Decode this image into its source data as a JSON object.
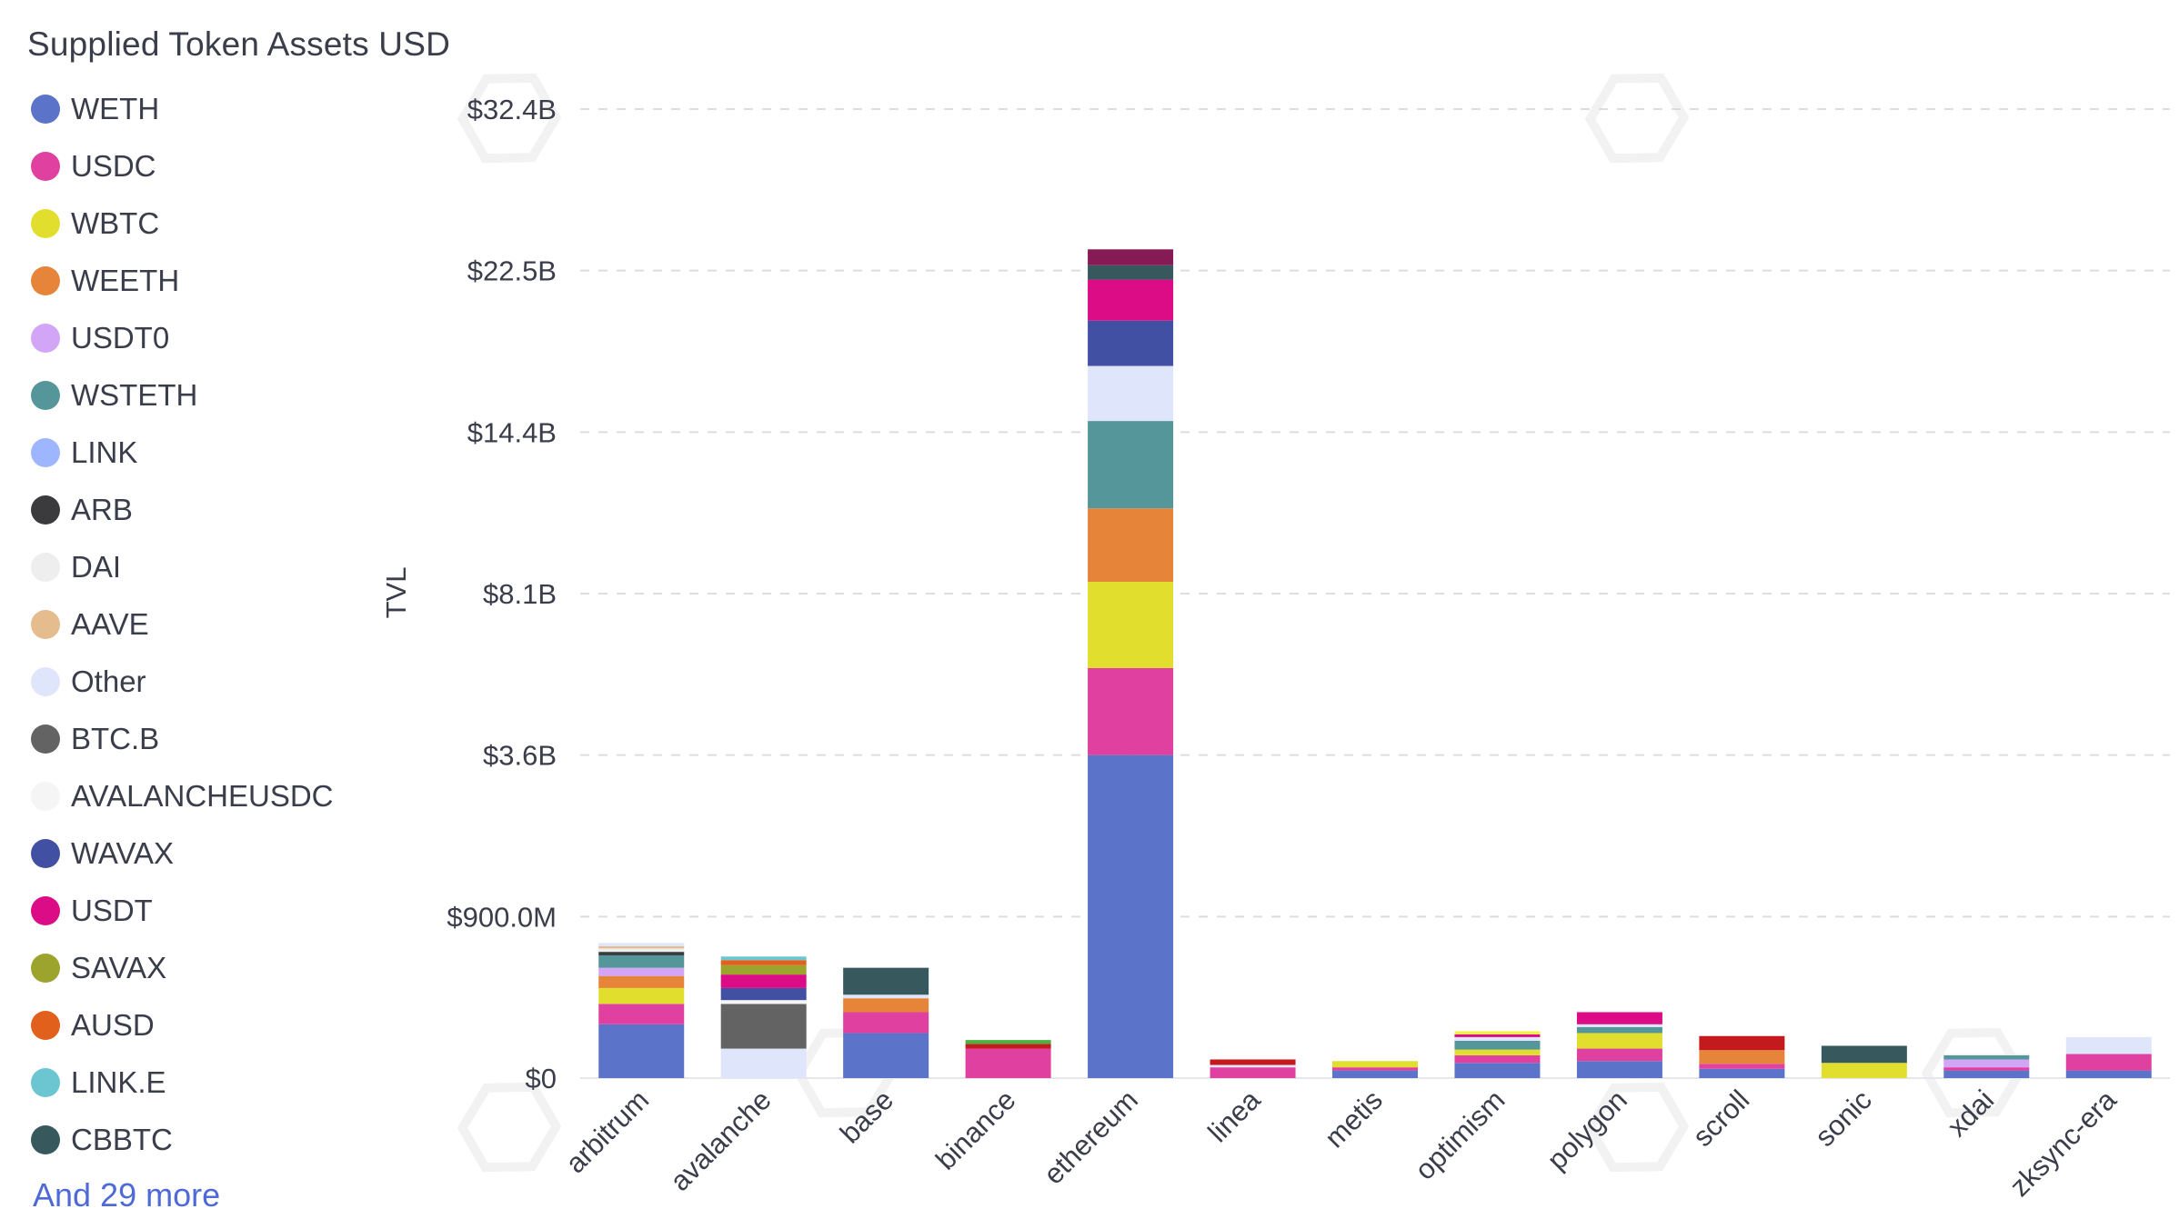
{
  "chart_data": {
    "type": "bar",
    "stacked": true,
    "title": "Supplied Token Assets USD",
    "ylabel": "TVL",
    "xlabel": "",
    "ytick_labels": [
      "$0",
      "$900.0M",
      "$3.6B",
      "$8.1B",
      "$14.4B",
      "$22.5B",
      "$32.4B"
    ],
    "ytick_values": [
      0,
      0.9,
      3.6,
      8.1,
      14.4,
      22.5,
      32.4
    ],
    "y_scale": "sqrt",
    "ylim": [
      0,
      32.4
    ],
    "y_unit": "B USD",
    "grid": "horizontal-dashed",
    "legend_placement": "left",
    "categories": [
      "arbitrum",
      "avalanche",
      "base",
      "binance",
      "ethereum",
      "linea",
      "metis",
      "optimism",
      "polygon",
      "scroll",
      "sonic",
      "xdai",
      "zksync-era"
    ],
    "series": [
      {
        "name": "WETH",
        "color": "#5b73c8",
        "values": [
          0.1,
          0.0,
          0.07,
          0.0,
          3.6,
          0.0,
          0.002,
          0.008,
          0.01,
          0.003,
          0.0,
          0.002,
          0.002
        ]
      },
      {
        "name": "USDC",
        "color": "#e040a0",
        "values": [
          0.09,
          0.0,
          0.08,
          0.03,
          2.2,
          0.004,
          0.002,
          0.01,
          0.02,
          0.004,
          0.0,
          0.002,
          0.018
        ]
      },
      {
        "name": "WBTC",
        "color": "#e2de2e",
        "values": [
          0.09,
          0.0,
          0.0,
          0.0,
          2.7,
          0.0,
          0.006,
          0.01,
          0.04,
          0.0,
          0.008,
          0.0,
          0.0
        ]
      },
      {
        "name": "WEETH",
        "color": "#e6853a",
        "values": [
          0.08,
          0.0,
          0.07,
          0.0,
          2.7,
          0.0,
          0.0,
          0.0,
          0.0,
          0.02,
          0.0,
          0.0,
          0.0
        ]
      },
      {
        "name": "USDT0",
        "color": "#d3a5f7",
        "values": [
          0.06,
          0.0,
          0.0,
          0.0,
          0.0,
          0.0,
          0.0,
          0.0,
          0.0,
          0.0,
          0.0,
          0.008,
          0.0
        ]
      },
      {
        "name": "WSTETH",
        "color": "#55969a",
        "values": [
          0.1,
          0.0,
          0.0,
          0.0,
          3.7,
          0.0,
          0.0,
          0.02,
          0.02,
          0.0,
          0.0,
          0.006,
          0.0
        ]
      },
      {
        "name": "LINK",
        "color": "#9db6ff",
        "values": [
          0.0,
          0.0,
          0.0,
          0.0,
          0.0,
          0.0,
          0.0,
          0.0,
          0.0,
          0.0,
          0.0,
          0.0,
          0.0
        ]
      },
      {
        "name": "ARB",
        "color": "#3b3b3d",
        "values": [
          0.03,
          0.0,
          0.0,
          0.0,
          0.0,
          0.0,
          0.0,
          0.0,
          0.0,
          0.0,
          0.0,
          0.0,
          0.0
        ]
      },
      {
        "name": "DAI",
        "color": "#eeeeee",
        "values": [
          0.03,
          0.0,
          0.0,
          0.0,
          0.0,
          0.0,
          0.0,
          0.0,
          0.0,
          0.0,
          0.0,
          0.002,
          0.0
        ]
      },
      {
        "name": "AAVE",
        "color": "#e4bc8e",
        "values": [
          0.02,
          0.0,
          0.0,
          0.0,
          0.0,
          0.0,
          0.0,
          0.0,
          0.0,
          0.0,
          0.0,
          0.0,
          0.0
        ]
      },
      {
        "name": "Other",
        "color": "#dfe6fb",
        "values": [
          0.03,
          0.03,
          0.02,
          0.0,
          2.6,
          0.002,
          0.0,
          0.01,
          0.01,
          0.0,
          0.0,
          0.0,
          0.038
        ]
      },
      {
        "name": "BTC.B",
        "color": "#636363",
        "values": [
          0.0,
          0.16,
          0.0,
          0.0,
          0.0,
          0.0,
          0.0,
          0.0,
          0.0,
          0.0,
          0.0,
          0.0,
          0.0
        ]
      },
      {
        "name": "AVALANCHEUSDC",
        "color": "#f5f5f5",
        "values": [
          0.0,
          0.02,
          0.0,
          0.0,
          0.0,
          0.0,
          0.0,
          0.0,
          0.0,
          0.0,
          0.0,
          0.0,
          0.0
        ]
      },
      {
        "name": "WAVAX",
        "color": "#4150a3",
        "values": [
          0.0,
          0.07,
          0.0,
          0.0,
          2.3,
          0.0,
          0.0,
          0.0,
          0.0,
          0.0,
          0.0,
          0.0,
          0.0
        ]
      },
      {
        "name": "USDT",
        "color": "#dc0c86",
        "values": [
          0.0,
          0.09,
          0.0,
          0.0,
          2.2,
          0.0,
          0.0,
          0.008,
          0.05,
          0.0,
          0.0,
          0.0,
          0.0
        ]
      },
      {
        "name": "SAVAX",
        "color": "#9ca42e",
        "values": [
          0.0,
          0.07,
          0.0,
          0.0,
          0.0,
          0.0,
          0.0,
          0.0,
          0.0,
          0.0,
          0.0,
          0.0,
          0.0
        ]
      },
      {
        "name": "AUSD",
        "color": "#e0601c",
        "values": [
          0.0,
          0.04,
          0.0,
          0.0,
          0.0,
          0.0,
          0.0,
          0.0,
          0.0,
          0.0,
          0.0,
          0.0,
          0.0
        ]
      },
      {
        "name": "LINK.E",
        "color": "#6cc6d2",
        "values": [
          0.0,
          0.03,
          0.0,
          0.0,
          0.0,
          0.0,
          0.0,
          0.0,
          0.0,
          0.0,
          0.0,
          0.0,
          0.0
        ]
      },
      {
        "name": "CBBTC",
        "color": "#37595e",
        "values": [
          0.0,
          0.0,
          0.18,
          0.0,
          0.8,
          0.0,
          0.0,
          0.0,
          0.0,
          0.0,
          0.028,
          0.0,
          0.0
        ]
      },
      {
        "name": "",
        "color": "#c41a1e",
        "values": [
          0.0,
          0.0,
          0.0,
          0.01,
          0.0,
          0.006,
          0.0,
          0.0,
          0.0,
          0.034,
          0.0,
          0.0,
          0.0
        ]
      },
      {
        "name": "",
        "color": "#4fae3d",
        "values": [
          0.0,
          0.0,
          0.0,
          0.01,
          0.0,
          0.0,
          0.0,
          0.0,
          0.0,
          0.0,
          0.0,
          0.0,
          0.0
        ]
      },
      {
        "name": "",
        "color": "#861a55",
        "values": [
          0.0,
          0.0,
          0.0,
          0.0,
          0.9,
          0.0,
          0.0,
          0.0,
          0.0,
          0.0,
          0.0,
          0.0,
          0.0
        ]
      },
      {
        "name": "",
        "color": "#f4ee4a",
        "values": [
          0.0,
          0.0,
          0.0,
          0.0,
          0.0,
          0.0,
          0.0,
          0.01,
          0.0,
          0.0,
          0.0,
          0.0,
          0.0
        ]
      }
    ],
    "legend_more": "And 29 more"
  }
}
